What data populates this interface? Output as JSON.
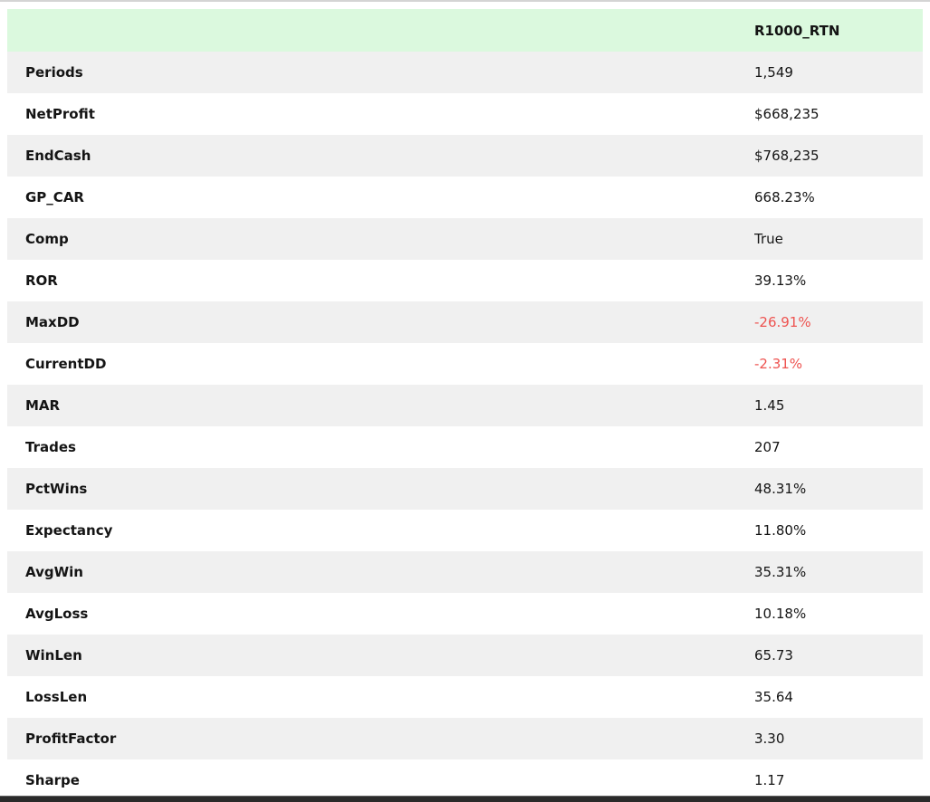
{
  "colors": {
    "header_bg": "#dbf9de",
    "stripe_bg": "#f0f0f0",
    "row_bg": "#ffffff",
    "negative": "#ee5350",
    "text": "#141414",
    "top_line": "#d4d4d4",
    "bottom_bar": "#2a2a2a"
  },
  "table": {
    "value_column_header": "R1000_RTN",
    "rows": [
      {
        "label": "Periods",
        "value": "1,549",
        "negative": false
      },
      {
        "label": "NetProfit",
        "value": "$668,235",
        "negative": false
      },
      {
        "label": "EndCash",
        "value": "$768,235",
        "negative": false
      },
      {
        "label": "GP_CAR",
        "value": "668.23%",
        "negative": false
      },
      {
        "label": "Comp",
        "value": "True",
        "negative": false
      },
      {
        "label": "ROR",
        "value": "39.13%",
        "negative": false
      },
      {
        "label": "MaxDD",
        "value": "-26.91%",
        "negative": true
      },
      {
        "label": "CurrentDD",
        "value": "-2.31%",
        "negative": true
      },
      {
        "label": "MAR",
        "value": "1.45",
        "negative": false
      },
      {
        "label": "Trades",
        "value": "207",
        "negative": false
      },
      {
        "label": "PctWins",
        "value": "48.31%",
        "negative": false
      },
      {
        "label": "Expectancy",
        "value": "11.80%",
        "negative": false
      },
      {
        "label": "AvgWin",
        "value": "35.31%",
        "negative": false
      },
      {
        "label": "AvgLoss",
        "value": "10.18%",
        "negative": false
      },
      {
        "label": "WinLen",
        "value": "65.73",
        "negative": false
      },
      {
        "label": "LossLen",
        "value": "35.64",
        "negative": false
      },
      {
        "label": "ProfitFactor",
        "value": "3.30",
        "negative": false
      },
      {
        "label": "Sharpe",
        "value": "1.17",
        "negative": false
      }
    ]
  },
  "chart_data": {
    "type": "table",
    "title": "",
    "columns": [
      "",
      "R1000_RTN"
    ],
    "rows": [
      [
        "Periods",
        "1,549"
      ],
      [
        "NetProfit",
        "$668,235"
      ],
      [
        "EndCash",
        "$768,235"
      ],
      [
        "GP_CAR",
        "668.23%"
      ],
      [
        "Comp",
        "True"
      ],
      [
        "ROR",
        "39.13%"
      ],
      [
        "MaxDD",
        "-26.91%"
      ],
      [
        "CurrentDD",
        "-2.31%"
      ],
      [
        "MAR",
        "1.45"
      ],
      [
        "Trades",
        "207"
      ],
      [
        "PctWins",
        "48.31%"
      ],
      [
        "Expectancy",
        "11.80%"
      ],
      [
        "AvgWin",
        "35.31%"
      ],
      [
        "AvgLoss",
        "10.18%"
      ],
      [
        "WinLen",
        "65.73"
      ],
      [
        "LossLen",
        "35.64"
      ],
      [
        "ProfitFactor",
        "3.30"
      ],
      [
        "Sharpe",
        "1.17"
      ]
    ],
    "layout": {
      "striped": true,
      "stripe_starts_on_first_row": true,
      "negative_values_red": [
        "MaxDD",
        "CurrentDD"
      ],
      "header_highlight": "pale-green"
    }
  }
}
